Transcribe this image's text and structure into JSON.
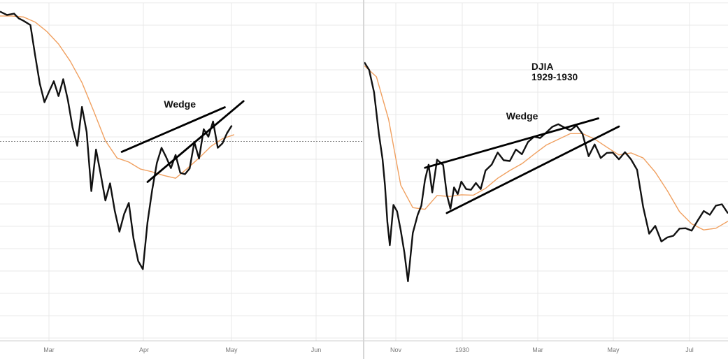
{
  "chart_data": [
    {
      "type": "line",
      "title": "",
      "xlabel": "",
      "ylabel": "",
      "x_tick_labels": [
        "Mar",
        "Apr",
        "May",
        "Jun"
      ],
      "grid": true,
      "colors": {
        "price": "#111111",
        "moving_average": "#f0a060",
        "grid": "#e8e8e8",
        "reference_line": "#888888"
      },
      "xlim": [
        0,
        155
      ],
      "ylim": [
        0,
        100
      ],
      "series": [
        {
          "role": "price",
          "x": [
            0,
            3,
            6,
            8,
            10,
            13,
            15,
            17,
            19,
            21,
            23,
            25,
            27,
            29,
            31,
            33,
            35,
            37,
            39,
            41,
            43,
            45,
            47,
            49,
            51,
            53,
            55,
            57,
            59,
            61,
            63,
            65,
            67,
            69,
            71,
            73,
            75,
            77,
            79,
            81,
            83,
            85,
            87,
            89,
            91,
            93,
            95,
            97,
            99
          ],
          "values": [
            97.4,
            96.4,
            96.8,
            95.4,
            94.7,
            93.4,
            84.5,
            76.1,
            70.6,
            73.8,
            76.8,
            72.4,
            77.4,
            71.2,
            63.1,
            57.7,
            69.2,
            61.8,
            44.3,
            56.6,
            49.3,
            41.5,
            46.6,
            38.5,
            32.3,
            37.5,
            40.8,
            30.3,
            23.6,
            21.2,
            35.0,
            44.6,
            52.6,
            57.1,
            54.3,
            51.1,
            55.0,
            49.7,
            49.3,
            51.0,
            58.8,
            53.9,
            62.6,
            60.4,
            64.9,
            57.1,
            58.4,
            61.5,
            63.7
          ]
        },
        {
          "role": "moving_average",
          "x": [
            0,
            5,
            10,
            15,
            20,
            25,
            30,
            35,
            40,
            45,
            50,
            55,
            60,
            65,
            70,
            75,
            80,
            85,
            90,
            95,
            100
          ],
          "values": [
            96.1,
            96.1,
            95.8,
            94.3,
            91.5,
            87.8,
            82.7,
            76.4,
            68.0,
            59.2,
            54.1,
            52.9,
            50.8,
            50.0,
            48.9,
            48.1,
            51.0,
            54.1,
            57.5,
            59.8,
            61.0
          ]
        }
      ],
      "annotations": [
        {
          "text": "Wedge",
          "x": 70,
          "y": 69
        },
        {
          "shape": "trendline",
          "x": [
            52,
            96
          ],
          "values": [
            55.9,
            69.1
          ]
        },
        {
          "shape": "trendline",
          "x": [
            63,
            104
          ],
          "values": [
            47.0,
            70.9
          ]
        },
        {
          "shape": "reference_line",
          "orientation": "horizontal",
          "value": 59.0,
          "style": "dotted"
        }
      ]
    },
    {
      "type": "line",
      "title": "DJIA\n1929-1930",
      "xlabel": "",
      "ylabel": "",
      "x_tick_labels": [
        "Nov",
        "1930",
        "Mar",
        "May",
        "Jul"
      ],
      "grid": true,
      "colors": {
        "price": "#111111",
        "moving_average": "#f0a060",
        "grid": "#e8e8e8"
      },
      "xlim": [
        0,
        300
      ],
      "ylim": [
        0,
        100
      ],
      "series": [
        {
          "role": "price",
          "x": [
            0,
            4,
            8,
            12,
            15,
            17,
            19,
            21,
            24,
            27,
            30,
            33,
            36,
            40,
            44,
            47,
            50,
            53,
            56,
            60,
            65,
            68,
            71,
            74,
            77,
            80,
            84,
            88,
            92,
            96,
            100,
            105,
            110,
            115,
            120,
            125,
            130,
            135,
            140,
            145,
            150,
            155,
            160,
            165,
            170,
            175,
            180,
            185,
            190,
            195,
            200,
            205,
            210,
            215,
            220,
            225,
            230,
            235,
            240,
            245,
            250,
            255,
            260,
            265,
            270,
            275,
            280,
            285,
            290,
            295,
            300
          ],
          "values": [
            82.4,
            80.1,
            73.5,
            61.2,
            53.8,
            46.0,
            35.2,
            28.3,
            40.2,
            38.3,
            32.7,
            26.2,
            17.6,
            31.9,
            37.3,
            40.0,
            47.6,
            52.1,
            43.9,
            53.6,
            52.0,
            43.3,
            39.1,
            45.4,
            43.4,
            47.1,
            44.9,
            44.7,
            46.7,
            44.9,
            50.4,
            52.1,
            55.7,
            53.4,
            53.2,
            56.6,
            55.2,
            58.8,
            60.4,
            60.0,
            61.6,
            63.3,
            64.1,
            63.1,
            62.3,
            63.7,
            61.2,
            54.6,
            58.1,
            54.1,
            55.6,
            55.7,
            53.7,
            55.8,
            53.7,
            50.6,
            39.6,
            31.7,
            34.0,
            29.4,
            30.6,
            31.1,
            33.2,
            33.3,
            32.6,
            35.6,
            38.4,
            37.3,
            40.0,
            40.4,
            37.7
          ]
        },
        {
          "role": "moving_average",
          "x": [
            0,
            10,
            20,
            30,
            40,
            50,
            60,
            70,
            80,
            90,
            100,
            110,
            120,
            130,
            140,
            150,
            160,
            170,
            180,
            190,
            200,
            210,
            220,
            230,
            240,
            250,
            260,
            270,
            280,
            290,
            300
          ],
          "values": [
            81.4,
            78.1,
            65.5,
            46.1,
            39.4,
            38.9,
            43.0,
            42.7,
            43.2,
            43.1,
            45.1,
            48.1,
            50.4,
            52.4,
            55.2,
            57.9,
            59.6,
            61.3,
            61.3,
            59.7,
            57.3,
            55.0,
            55.6,
            54.1,
            49.9,
            44.4,
            38.2,
            34.6,
            32.8,
            33.3,
            35.4
          ]
        }
      ],
      "annotations": [
        {
          "text": "Wedge",
          "x": 117,
          "y": 65.5
        },
        {
          "shape": "trendline",
          "x": [
            50,
            193
          ],
          "values": [
            51.2,
            65.8
          ]
        },
        {
          "shape": "trendline",
          "x": [
            68,
            210
          ],
          "values": [
            37.8,
            63.4
          ]
        }
      ]
    }
  ]
}
